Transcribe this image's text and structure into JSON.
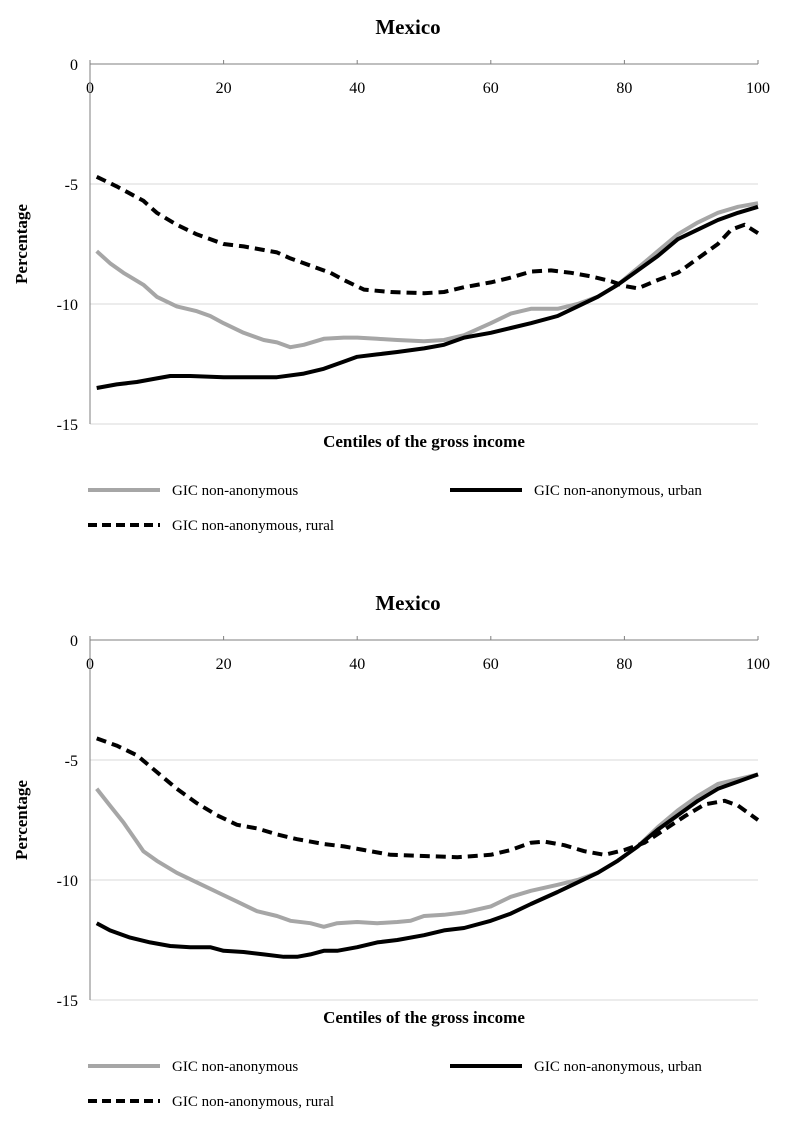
{
  "chart_data": [
    {
      "type": "line",
      "title": "Mexico",
      "xlabel": "Centiles of the gross income",
      "ylabel": "Percentage",
      "xlim": [
        0,
        100
      ],
      "ylim": [
        -15,
        0
      ],
      "x_ticks": [
        "0",
        "20",
        "40",
        "60",
        "80",
        "100"
      ],
      "y_ticks": [
        "0",
        "-5",
        "-10",
        "-15"
      ],
      "grid": "horizontal",
      "legend": "bottom",
      "series": [
        {
          "name": "GIC non-anonymous",
          "color": "#a6a6a6",
          "style": "solid",
          "points": [
            [
              1,
              -7.8
            ],
            [
              3,
              -8.3
            ],
            [
              5,
              -8.7
            ],
            [
              8,
              -9.2
            ],
            [
              10,
              -9.7
            ],
            [
              13,
              -10.1
            ],
            [
              16,
              -10.3
            ],
            [
              18,
              -10.5
            ],
            [
              20,
              -10.8
            ],
            [
              23,
              -11.2
            ],
            [
              26,
              -11.5
            ],
            [
              28,
              -11.6
            ],
            [
              30,
              -11.8
            ],
            [
              32,
              -11.7
            ],
            [
              35,
              -11.45
            ],
            [
              38,
              -11.4
            ],
            [
              40,
              -11.4
            ],
            [
              43,
              -11.45
            ],
            [
              46,
              -11.5
            ],
            [
              50,
              -11.55
            ],
            [
              53,
              -11.5
            ],
            [
              56,
              -11.3
            ],
            [
              60,
              -10.8
            ],
            [
              63,
              -10.4
            ],
            [
              66,
              -10.2
            ],
            [
              70,
              -10.2
            ],
            [
              73,
              -10.0
            ],
            [
              76,
              -9.7
            ],
            [
              79,
              -9.2
            ],
            [
              82,
              -8.5
            ],
            [
              85,
              -7.8
            ],
            [
              88,
              -7.1
            ],
            [
              91,
              -6.6
            ],
            [
              94,
              -6.2
            ],
            [
              97,
              -5.95
            ],
            [
              100,
              -5.8
            ]
          ]
        },
        {
          "name": "GIC non-anonymous, urban",
          "color": "#000000",
          "style": "solid",
          "points": [
            [
              1,
              -13.5
            ],
            [
              4,
              -13.35
            ],
            [
              7,
              -13.25
            ],
            [
              10,
              -13.1
            ],
            [
              12,
              -13.0
            ],
            [
              15,
              -13.0
            ],
            [
              20,
              -13.05
            ],
            [
              25,
              -13.05
            ],
            [
              28,
              -13.05
            ],
            [
              32,
              -12.9
            ],
            [
              35,
              -12.7
            ],
            [
              38,
              -12.4
            ],
            [
              40,
              -12.2
            ],
            [
              43,
              -12.1
            ],
            [
              46,
              -12.0
            ],
            [
              50,
              -11.85
            ],
            [
              53,
              -11.7
            ],
            [
              56,
              -11.4
            ],
            [
              60,
              -11.2
            ],
            [
              63,
              -11.0
            ],
            [
              66,
              -10.8
            ],
            [
              70,
              -10.5
            ],
            [
              73,
              -10.1
            ],
            [
              76,
              -9.7
            ],
            [
              79,
              -9.2
            ],
            [
              82,
              -8.6
            ],
            [
              85,
              -8.0
            ],
            [
              88,
              -7.3
            ],
            [
              91,
              -6.9
            ],
            [
              94,
              -6.5
            ],
            [
              97,
              -6.2
            ],
            [
              100,
              -5.95
            ]
          ]
        },
        {
          "name": "GIC non-anonymous, rural",
          "color": "#000000",
          "style": "dashed",
          "points": [
            [
              1,
              -4.7
            ],
            [
              4,
              -5.1
            ],
            [
              8,
              -5.7
            ],
            [
              10,
              -6.2
            ],
            [
              13,
              -6.7
            ],
            [
              16,
              -7.1
            ],
            [
              20,
              -7.5
            ],
            [
              23,
              -7.6
            ],
            [
              26,
              -7.75
            ],
            [
              28,
              -7.85
            ],
            [
              30,
              -8.1
            ],
            [
              33,
              -8.4
            ],
            [
              36,
              -8.7
            ],
            [
              38,
              -9.0
            ],
            [
              41,
              -9.4
            ],
            [
              45,
              -9.5
            ],
            [
              50,
              -9.55
            ],
            [
              53,
              -9.5
            ],
            [
              56,
              -9.3
            ],
            [
              60,
              -9.1
            ],
            [
              63,
              -8.9
            ],
            [
              66,
              -8.65
            ],
            [
              69,
              -8.6
            ],
            [
              72,
              -8.7
            ],
            [
              75,
              -8.85
            ],
            [
              78,
              -9.05
            ],
            [
              80,
              -9.25
            ],
            [
              82,
              -9.35
            ],
            [
              85,
              -9.0
            ],
            [
              88,
              -8.7
            ],
            [
              91,
              -8.1
            ],
            [
              94,
              -7.5
            ],
            [
              96,
              -6.9
            ],
            [
              98,
              -6.7
            ],
            [
              100,
              -7.05
            ]
          ]
        }
      ]
    },
    {
      "type": "line",
      "title": "Mexico",
      "xlabel": "Centiles of the gross income",
      "ylabel": "Percentage",
      "xlim": [
        0,
        100
      ],
      "ylim": [
        -15,
        0
      ],
      "x_ticks": [
        "0",
        "20",
        "40",
        "60",
        "80",
        "100"
      ],
      "y_ticks": [
        "0",
        "-5",
        "-10",
        "-15"
      ],
      "grid": "horizontal",
      "legend": "bottom",
      "series": [
        {
          "name": "GIC non-anonymous",
          "color": "#a6a6a6",
          "style": "solid",
          "points": [
            [
              1,
              -6.2
            ],
            [
              3,
              -6.9
            ],
            [
              5,
              -7.6
            ],
            [
              7,
              -8.4
            ],
            [
              8,
              -8.8
            ],
            [
              10,
              -9.2
            ],
            [
              13,
              -9.7
            ],
            [
              16,
              -10.1
            ],
            [
              19,
              -10.5
            ],
            [
              22,
              -10.9
            ],
            [
              25,
              -11.3
            ],
            [
              28,
              -11.5
            ],
            [
              30,
              -11.7
            ],
            [
              33,
              -11.8
            ],
            [
              35,
              -11.95
            ],
            [
              37,
              -11.8
            ],
            [
              40,
              -11.75
            ],
            [
              43,
              -11.8
            ],
            [
              46,
              -11.75
            ],
            [
              48,
              -11.7
            ],
            [
              50,
              -11.5
            ],
            [
              53,
              -11.45
            ],
            [
              56,
              -11.35
            ],
            [
              60,
              -11.1
            ],
            [
              63,
              -10.7
            ],
            [
              66,
              -10.45
            ],
            [
              70,
              -10.2
            ],
            [
              73,
              -10.0
            ],
            [
              76,
              -9.7
            ],
            [
              79,
              -9.2
            ],
            [
              82,
              -8.6
            ],
            [
              85,
              -7.8
            ],
            [
              88,
              -7.1
            ],
            [
              91,
              -6.5
            ],
            [
              94,
              -6.0
            ],
            [
              97,
              -5.8
            ],
            [
              100,
              -5.6
            ]
          ]
        },
        {
          "name": "GIC non-anonymous, urban",
          "color": "#000000",
          "style": "solid",
          "points": [
            [
              1,
              -11.8
            ],
            [
              3,
              -12.1
            ],
            [
              6,
              -12.4
            ],
            [
              9,
              -12.6
            ],
            [
              12,
              -12.75
            ],
            [
              15,
              -12.8
            ],
            [
              18,
              -12.8
            ],
            [
              20,
              -12.95
            ],
            [
              23,
              -13.0
            ],
            [
              26,
              -13.1
            ],
            [
              29,
              -13.2
            ],
            [
              31,
              -13.2
            ],
            [
              33,
              -13.1
            ],
            [
              35,
              -12.95
            ],
            [
              37,
              -12.95
            ],
            [
              40,
              -12.8
            ],
            [
              43,
              -12.6
            ],
            [
              46,
              -12.5
            ],
            [
              50,
              -12.3
            ],
            [
              53,
              -12.1
            ],
            [
              56,
              -12.0
            ],
            [
              60,
              -11.7
            ],
            [
              63,
              -11.4
            ],
            [
              66,
              -11.0
            ],
            [
              70,
              -10.5
            ],
            [
              73,
              -10.1
            ],
            [
              76,
              -9.7
            ],
            [
              79,
              -9.2
            ],
            [
              82,
              -8.6
            ],
            [
              85,
              -7.9
            ],
            [
              88,
              -7.3
            ],
            [
              91,
              -6.7
            ],
            [
              94,
              -6.2
            ],
            [
              97,
              -5.9
            ],
            [
              100,
              -5.6
            ]
          ]
        },
        {
          "name": "GIC non-anonymous, rural",
          "color": "#000000",
          "style": "dashed",
          "points": [
            [
              1,
              -4.1
            ],
            [
              4,
              -4.4
            ],
            [
              7,
              -4.8
            ],
            [
              10,
              -5.5
            ],
            [
              13,
              -6.2
            ],
            [
              16,
              -6.8
            ],
            [
              19,
              -7.3
            ],
            [
              22,
              -7.7
            ],
            [
              25,
              -7.85
            ],
            [
              28,
              -8.1
            ],
            [
              31,
              -8.3
            ],
            [
              35,
              -8.5
            ],
            [
              38,
              -8.6
            ],
            [
              41,
              -8.75
            ],
            [
              45,
              -8.95
            ],
            [
              50,
              -9.0
            ],
            [
              55,
              -9.05
            ],
            [
              60,
              -8.95
            ],
            [
              63,
              -8.75
            ],
            [
              66,
              -8.45
            ],
            [
              68,
              -8.4
            ],
            [
              71,
              -8.55
            ],
            [
              74,
              -8.8
            ],
            [
              77,
              -8.95
            ],
            [
              80,
              -8.75
            ],
            [
              83,
              -8.45
            ],
            [
              86,
              -7.9
            ],
            [
              89,
              -7.35
            ],
            [
              92,
              -6.85
            ],
            [
              95,
              -6.7
            ],
            [
              97,
              -6.9
            ],
            [
              100,
              -7.5
            ]
          ]
        }
      ]
    }
  ]
}
